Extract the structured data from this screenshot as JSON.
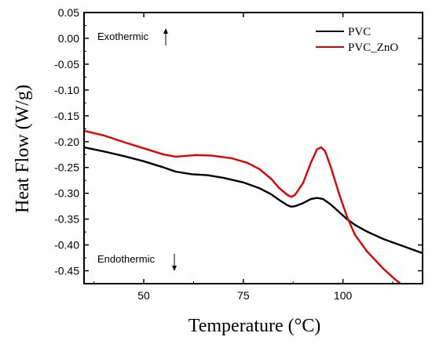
{
  "chart_data": {
    "type": "line",
    "xlabel": "Temperature (°C)",
    "ylabel": "Heat Flow (W/g)",
    "xlim": [
      35,
      120
    ],
    "ylim": [
      -0.475,
      0.05
    ],
    "x_ticks": [
      50,
      75,
      100
    ],
    "y_ticks": [
      0.05,
      0.0,
      -0.05,
      -0.1,
      -0.15,
      -0.2,
      -0.25,
      -0.3,
      -0.35,
      -0.4,
      -0.45
    ],
    "y_tick_labels": [
      "0.05",
      "0.00",
      "-0.05",
      "-0.10",
      "-0.15",
      "-0.20",
      "-0.25",
      "-0.30",
      "-0.35",
      "-0.40",
      "-0.45"
    ],
    "legend_position": "top-right",
    "annotations": [
      {
        "text": "Exothermic",
        "arrow": "up",
        "placement": "top-left"
      },
      {
        "text": "Endothermic",
        "arrow": "down",
        "placement": "bottom-left"
      }
    ],
    "series": [
      {
        "name": "PVC",
        "color": "#000000",
        "points": [
          [
            35,
            -0.211
          ],
          [
            40,
            -0.219
          ],
          [
            45,
            -0.228
          ],
          [
            50,
            -0.238
          ],
          [
            55,
            -0.25
          ],
          [
            58,
            -0.258
          ],
          [
            62,
            -0.263
          ],
          [
            66,
            -0.265
          ],
          [
            70,
            -0.27
          ],
          [
            75,
            -0.279
          ],
          [
            79,
            -0.29
          ],
          [
            82,
            -0.302
          ],
          [
            84,
            -0.313
          ],
          [
            86,
            -0.323
          ],
          [
            87,
            -0.326
          ],
          [
            88,
            -0.325
          ],
          [
            90,
            -0.319
          ],
          [
            92,
            -0.311
          ],
          [
            93.5,
            -0.309
          ],
          [
            95,
            -0.311
          ],
          [
            97,
            -0.322
          ],
          [
            99,
            -0.336
          ],
          [
            101,
            -0.35
          ],
          [
            103,
            -0.361
          ],
          [
            106,
            -0.374
          ],
          [
            110,
            -0.388
          ],
          [
            115,
            -0.402
          ],
          [
            120,
            -0.416
          ]
        ]
      },
      {
        "name": "PVC_ZnO",
        "color": "#e00000",
        "points": [
          [
            35,
            -0.179
          ],
          [
            40,
            -0.188
          ],
          [
            45,
            -0.201
          ],
          [
            50,
            -0.213
          ],
          [
            55,
            -0.225
          ],
          [
            58,
            -0.229
          ],
          [
            60,
            -0.228
          ],
          [
            63,
            -0.226
          ],
          [
            67,
            -0.227
          ],
          [
            72,
            -0.232
          ],
          [
            76,
            -0.241
          ],
          [
            79,
            -0.253
          ],
          [
            82,
            -0.272
          ],
          [
            84,
            -0.29
          ],
          [
            86,
            -0.303
          ],
          [
            87,
            -0.307
          ],
          [
            88,
            -0.303
          ],
          [
            90,
            -0.28
          ],
          [
            92,
            -0.24
          ],
          [
            93.5,
            -0.215
          ],
          [
            94.5,
            -0.211
          ],
          [
            95.5,
            -0.218
          ],
          [
            97,
            -0.25
          ],
          [
            99,
            -0.3
          ],
          [
            101,
            -0.345
          ],
          [
            103,
            -0.38
          ],
          [
            106,
            -0.412
          ],
          [
            110,
            -0.445
          ],
          [
            113,
            -0.466
          ],
          [
            115,
            -0.478
          ]
        ]
      }
    ]
  }
}
